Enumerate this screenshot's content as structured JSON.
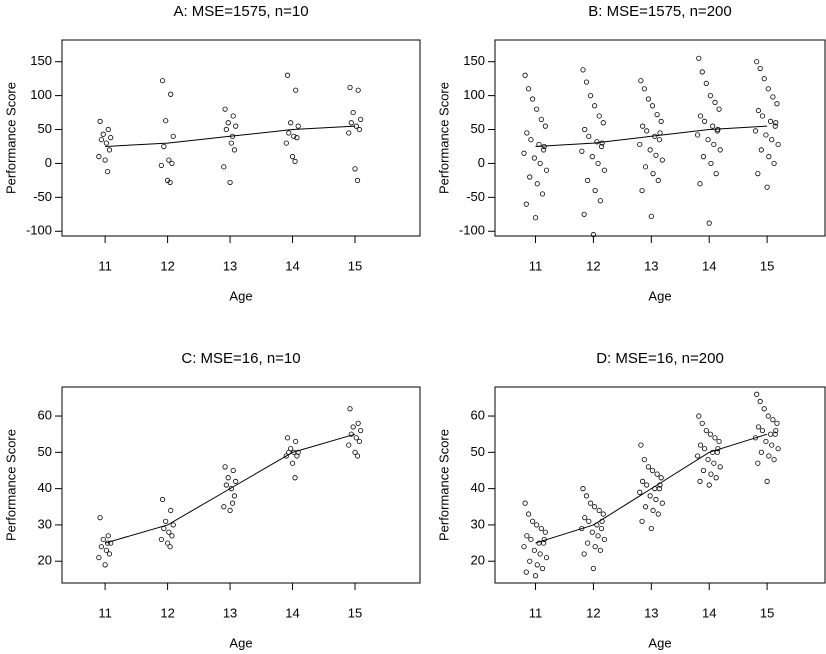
{
  "chart_data": [
    {
      "type": "scatter",
      "title": "A: MSE=1575, n=10",
      "xlabel": "Age",
      "ylabel": "Performance Score",
      "xlim": [
        10.31,
        16.04
      ],
      "ylim": [
        -107,
        182
      ],
      "xticks": [
        11,
        12,
        13,
        14,
        15
      ],
      "yticks": [
        -100,
        -50,
        0,
        50,
        100,
        150
      ],
      "points": {
        "x": [
          10.92,
          11.05,
          10.97,
          11.09,
          10.94,
          11.02,
          11.07,
          10.9,
          11,
          11.04,
          11.92,
          12.05,
          11.97,
          12.09,
          11.94,
          12.02,
          12.07,
          11.9,
          12,
          12.04,
          12.92,
          13.05,
          12.97,
          13.09,
          12.94,
          13.02,
          13.07,
          12.9,
          13,
          13.04,
          13.92,
          14.05,
          13.97,
          14.09,
          13.94,
          14.02,
          14.07,
          13.9,
          14,
          14.04,
          14.92,
          15.05,
          14.97,
          15.09,
          14.94,
          15.02,
          15.07,
          14.9,
          15,
          15.04
        ],
        "y": [
          62,
          50,
          43,
          38,
          35,
          30,
          20,
          10,
          5,
          -12,
          122,
          102,
          63,
          40,
          25,
          5,
          0,
          -3,
          -25,
          -28,
          80,
          70,
          60,
          55,
          50,
          30,
          20,
          -5,
          -28,
          40,
          130,
          108,
          60,
          55,
          45,
          40,
          38,
          30,
          10,
          3,
          112,
          108,
          75,
          65,
          60,
          55,
          50,
          45,
          -8,
          -25
        ]
      },
      "mean": {
        "x": [
          11,
          12,
          13,
          14,
          15
        ],
        "y": [
          25,
          30,
          40,
          50,
          55
        ]
      }
    },
    {
      "type": "scatter",
      "title": "B: MSE=1575, n=200",
      "xlabel": "Age",
      "ylabel": "Performance Score",
      "xlim": [
        10.3,
        16.0
      ],
      "ylim": [
        -107,
        182
      ],
      "xticks": [
        11,
        12,
        13,
        14,
        15
      ],
      "yticks": [
        -100,
        -50,
        0,
        50,
        100,
        150
      ],
      "points": {
        "x": [
          10.82,
          10.88,
          10.95,
          11.02,
          11.1,
          11.17,
          10.85,
          10.92,
          11.06,
          11.14,
          10.8,
          10.98,
          11.08,
          11.19,
          10.9,
          11.03,
          11.12,
          10.84,
          11,
          11.15,
          11.82,
          11.88,
          11.95,
          12.02,
          12.1,
          12.17,
          11.85,
          11.92,
          12.06,
          12.14,
          11.8,
          11.98,
          12.08,
          12.19,
          11.9,
          12.03,
          12.12,
          11.84,
          12,
          12.15,
          12.82,
          12.88,
          12.95,
          13.02,
          13.1,
          13.17,
          12.85,
          12.92,
          13.06,
          13.14,
          12.8,
          12.98,
          13.08,
          13.19,
          12.9,
          13.03,
          13.12,
          12.84,
          13,
          13.15,
          13.82,
          13.88,
          13.95,
          14.02,
          14.1,
          14.17,
          13.85,
          13.92,
          14.06,
          14.14,
          13.8,
          13.98,
          14.08,
          14.19,
          13.9,
          14.03,
          14.12,
          13.84,
          14,
          14.15,
          14.82,
          14.88,
          14.95,
          15.02,
          15.1,
          15.17,
          14.85,
          14.92,
          15.06,
          15.14,
          14.8,
          14.98,
          15.08,
          15.19,
          14.9,
          15.03,
          15.12,
          14.84,
          15,
          15.15
        ],
        "y": [
          130,
          110,
          95,
          80,
          65,
          55,
          45,
          35,
          28,
          20,
          15,
          8,
          0,
          -10,
          -20,
          -30,
          -45,
          -60,
          -80,
          25,
          138,
          120,
          100,
          85,
          70,
          60,
          50,
          40,
          32,
          25,
          18,
          10,
          0,
          -10,
          -25,
          -40,
          -55,
          -75,
          -105,
          30,
          122,
          110,
          95,
          85,
          72,
          62,
          55,
          48,
          40,
          35,
          28,
          20,
          12,
          5,
          -5,
          -15,
          -25,
          -40,
          -78,
          45,
          155,
          135,
          118,
          100,
          90,
          80,
          70,
          62,
          55,
          48,
          42,
          35,
          28,
          20,
          10,
          0,
          -15,
          -30,
          -88,
          50,
          150,
          140,
          125,
          110,
          98,
          88,
          78,
          70,
          62,
          55,
          48,
          42,
          35,
          28,
          20,
          10,
          0,
          -15,
          -35,
          60
        ]
      },
      "mean": {
        "x": [
          11,
          12,
          13,
          14,
          15
        ],
        "y": [
          25,
          30,
          40,
          50,
          55
        ]
      }
    },
    {
      "type": "scatter",
      "title": "C: MSE=16, n=10",
      "xlabel": "Age",
      "ylabel": "Performance Score",
      "xlim": [
        10.31,
        16.04
      ],
      "ylim": [
        14,
        68
      ],
      "xticks": [
        11,
        12,
        13,
        14,
        15
      ],
      "yticks": [
        20,
        30,
        40,
        50,
        60
      ],
      "points": {
        "x": [
          10.92,
          11.05,
          10.97,
          11.09,
          10.94,
          11.02,
          11.07,
          10.9,
          11,
          11.04,
          11.92,
          12.05,
          11.97,
          12.09,
          11.94,
          12.02,
          12.07,
          11.9,
          12,
          12.04,
          12.92,
          13.05,
          12.97,
          13.09,
          12.94,
          13.02,
          13.07,
          12.9,
          13,
          13.04,
          13.92,
          14.05,
          13.97,
          14.09,
          13.94,
          14.02,
          14.07,
          13.9,
          14,
          14.04,
          14.92,
          15.05,
          14.97,
          15.09,
          14.94,
          15.02,
          15.07,
          14.9,
          15,
          15.04
        ],
        "y": [
          32,
          27,
          26,
          25,
          24,
          23,
          22,
          21,
          19,
          25,
          37,
          34,
          31,
          30,
          29,
          28,
          27,
          26,
          25,
          24,
          46,
          45,
          43,
          42,
          41,
          40,
          38,
          35,
          34,
          36,
          54,
          53,
          51,
          50,
          50,
          50,
          49,
          49,
          47,
          43,
          62,
          58,
          57,
          56,
          55,
          54,
          53,
          52,
          50,
          49
        ]
      },
      "mean": {
        "x": [
          11,
          12,
          13,
          14,
          15
        ],
        "y": [
          25,
          30,
          40,
          50,
          55
        ]
      }
    },
    {
      "type": "scatter",
      "title": "D: MSE=16, n=200",
      "xlabel": "Age",
      "ylabel": "Performance Score",
      "xlim": [
        10.3,
        16.0
      ],
      "ylim": [
        14,
        68
      ],
      "xticks": [
        11,
        12,
        13,
        14,
        15
      ],
      "yticks": [
        20,
        30,
        40,
        50,
        60
      ],
      "points": {
        "x": [
          10.82,
          10.88,
          10.95,
          11.02,
          11.1,
          11.17,
          10.85,
          10.92,
          11.06,
          11.14,
          10.8,
          10.98,
          11.08,
          11.19,
          10.9,
          11.03,
          11.12,
          10.84,
          11,
          11.15,
          11.82,
          11.88,
          11.95,
          12.02,
          12.1,
          12.17,
          11.85,
          11.92,
          12.06,
          12.14,
          11.8,
          11.98,
          12.08,
          12.19,
          11.9,
          12.03,
          12.12,
          11.84,
          12,
          12.15,
          12.82,
          12.88,
          12.95,
          13.02,
          13.1,
          13.17,
          12.85,
          12.92,
          13.06,
          13.14,
          12.8,
          12.98,
          13.08,
          13.19,
          12.9,
          13.03,
          13.12,
          12.84,
          13,
          13.15,
          13.82,
          13.88,
          13.95,
          14.02,
          14.1,
          14.17,
          13.85,
          13.92,
          14.06,
          14.14,
          13.8,
          13.98,
          14.08,
          14.19,
          13.9,
          14.03,
          14.12,
          13.84,
          14,
          14.15,
          14.82,
          14.88,
          14.95,
          15.02,
          15.1,
          15.17,
          14.85,
          14.92,
          15.06,
          15.14,
          14.8,
          14.98,
          15.08,
          15.19,
          14.9,
          15.03,
          15.12,
          14.84,
          15,
          15.15
        ],
        "y": [
          36,
          33,
          31,
          30,
          29,
          28,
          27,
          26,
          25,
          25,
          24,
          23,
          22,
          21,
          20,
          19,
          18,
          17,
          16,
          26,
          40,
          38,
          36,
          35,
          34,
          33,
          32,
          31,
          30,
          29,
          29,
          28,
          27,
          26,
          25,
          24,
          23,
          22,
          18,
          31,
          52,
          48,
          46,
          45,
          44,
          43,
          42,
          41,
          40,
          40,
          39,
          38,
          37,
          36,
          35,
          34,
          33,
          31,
          29,
          41,
          60,
          58,
          56,
          55,
          54,
          53,
          52,
          51,
          50,
          50,
          49,
          48,
          47,
          46,
          45,
          44,
          43,
          42,
          41,
          51,
          66,
          64,
          62,
          60,
          59,
          58,
          57,
          56,
          55,
          55,
          54,
          53,
          52,
          51,
          50,
          49,
          48,
          47,
          42,
          56
        ]
      },
      "mean": {
        "x": [
          11,
          12,
          13,
          14,
          15
        ],
        "y": [
          25,
          30,
          40,
          50,
          55
        ]
      }
    }
  ]
}
